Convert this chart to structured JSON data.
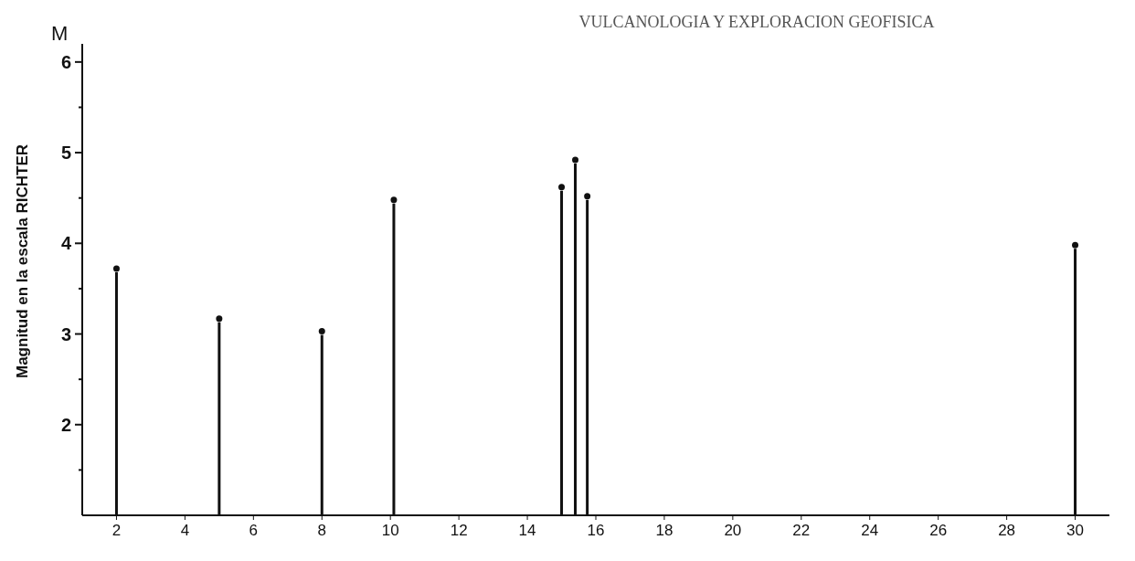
{
  "chart_data": {
    "type": "lollipop",
    "ylabel": "Magnitud en la escala RICHTER",
    "annotations": [
      "M",
      "VULCANOLOGIA Y EXPLORACION GEOFISICA"
    ],
    "x": [
      2,
      5,
      8,
      10.1,
      15,
      15.4,
      15.75,
      30
    ],
    "values": [
      3.72,
      3.17,
      3.03,
      4.48,
      4.62,
      4.92,
      4.52,
      3.98
    ],
    "color": "#111111",
    "marker": "circle",
    "grid": false,
    "xlim": [
      1,
      31
    ],
    "xticks": [
      2,
      4,
      6,
      8,
      10,
      12,
      14,
      16,
      18,
      20,
      22,
      24,
      26,
      28,
      30
    ],
    "ylim": [
      1,
      6.2
    ],
    "yticks": [
      {
        "value": 1.5,
        "label": null
      },
      2,
      {
        "value": 2.5,
        "label": null
      },
      3,
      {
        "value": 3.5,
        "label": null
      },
      4,
      {
        "value": 4.5,
        "label": null
      },
      5,
      {
        "value": 5.5,
        "label": null
      },
      6
    ]
  }
}
